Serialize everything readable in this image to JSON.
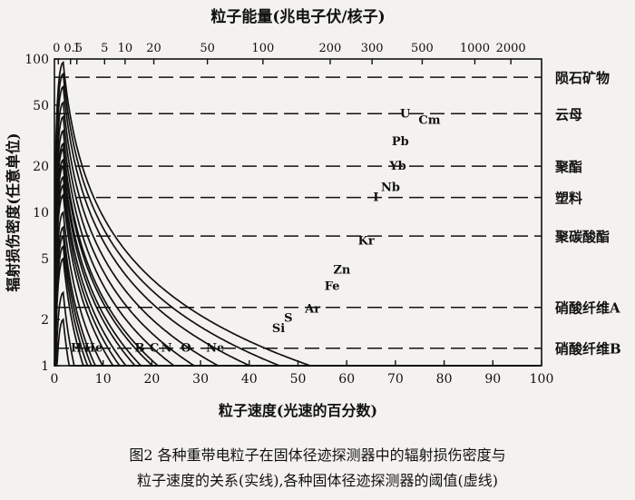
{
  "chart_data": {
    "type": "line",
    "title_top": "粒子能量(兆电子伏/核子)",
    "xlabel": "粒子速度(光速的百分数)",
    "ylabel": "辐射损伤密度(任意单位)",
    "xlim": [
      0,
      100
    ],
    "ylim": [
      1,
      100
    ],
    "y_scale": "log",
    "x_ticks": [
      "0",
      "10",
      "20",
      "30",
      "40",
      "50",
      "60",
      "70",
      "80",
      "90",
      "100"
    ],
    "y_ticks": [
      "1",
      "2",
      "5",
      "10",
      "20",
      "50",
      "100"
    ],
    "top_ticks": [
      {
        "label": "0",
        "x": 0.8
      },
      {
        "label": "0.5",
        "x": 3.3
      },
      {
        "label": "1",
        "x": 4.6
      },
      {
        "label": "5",
        "x": 10.3
      },
      {
        "label": "10",
        "x": 14.5
      },
      {
        "label": "20",
        "x": 20.4
      },
      {
        "label": "50",
        "x": 31.4
      },
      {
        "label": "100",
        "x": 42.8
      },
      {
        "label": "200",
        "x": 56.6
      },
      {
        "label": "300",
        "x": 65.2
      },
      {
        "label": "500",
        "x": 75.5
      },
      {
        "label": "1000",
        "x": 86.3
      },
      {
        "label": "2000",
        "x": 93.7
      }
    ],
    "thresholds": [
      {
        "name": "陨石矿物",
        "y": 76
      },
      {
        "name": "云母",
        "y": 44
      },
      {
        "name": "聚酯",
        "y": 20
      },
      {
        "name": "塑料",
        "y": 12.5
      },
      {
        "name": "聚碳酸酯",
        "y": 7
      },
      {
        "name": "硝酸纤维A",
        "y": 2.4
      },
      {
        "name": "硝酸纤维B",
        "y": 1.3
      }
    ],
    "series": [
      {
        "name": "U",
        "peak_y": 95,
        "label_x": 72,
        "label_y": 44
      },
      {
        "name": "",
        "peak_y": 80
      },
      {
        "name": "Pb",
        "peak_y": 66,
        "label_x": 71,
        "label_y": 29
      },
      {
        "name": "Yb",
        "peak_y": 52,
        "label_x": 70.5,
        "label_y": 20
      },
      {
        "name": "Nb",
        "peak_y": 42,
        "label_x": 69,
        "label_y": 14.5
      },
      {
        "name": "I",
        "peak_y": 34,
        "label_x": 66,
        "label_y": 12.5
      },
      {
        "name": "",
        "peak_y": 28
      },
      {
        "name": "Kr",
        "peak_y": 26,
        "label_x": 64,
        "label_y": 6.5
      },
      {
        "name": "Zn",
        "peak_y": 22,
        "label_x": 59,
        "label_y": 4.2
      },
      {
        "name": "Fe",
        "peak_y": 20,
        "label_x": 57,
        "label_y": 3.3
      },
      {
        "name": "Ar",
        "peak_y": 17,
        "label_x": 53,
        "label_y": 2.35
      },
      {
        "name": "S",
        "peak_y": 15,
        "label_x": 48,
        "label_y": 2.05
      },
      {
        "name": "Si",
        "peak_y": 13,
        "label_x": 46,
        "label_y": 1.75
      },
      {
        "name": "Ne",
        "peak_y": 10,
        "label_x": 33,
        "label_y": 1.3
      },
      {
        "name": "O",
        "peak_y": 8,
        "label_x": 27,
        "label_y": 1.3
      },
      {
        "name": "N",
        "peak_y": 7,
        "label_x": 23,
        "label_y": 1.3
      },
      {
        "name": "C",
        "peak_y": 6,
        "label_x": 20.5,
        "label_y": 1.3
      },
      {
        "name": "B",
        "peak_y": 5,
        "label_x": 17.5,
        "label_y": 1.3
      },
      {
        "name": "He",
        "peak_y": 3,
        "label_x": 8,
        "label_y": 1.3
      },
      {
        "name": "H",
        "peak_y": 2,
        "label_x": 4.5,
        "label_y": 1.3
      }
    ],
    "curve_annotation": {
      "name": "Cm",
      "x": 77,
      "y": 40
    }
  },
  "caption": {
    "line1": "图2  各种重带电粒子在固体径迹探测器中的辐射损伤密度与",
    "line2": "粒子速度的关系(实线),各种固体径迹探测器的阈值(虚线)"
  }
}
